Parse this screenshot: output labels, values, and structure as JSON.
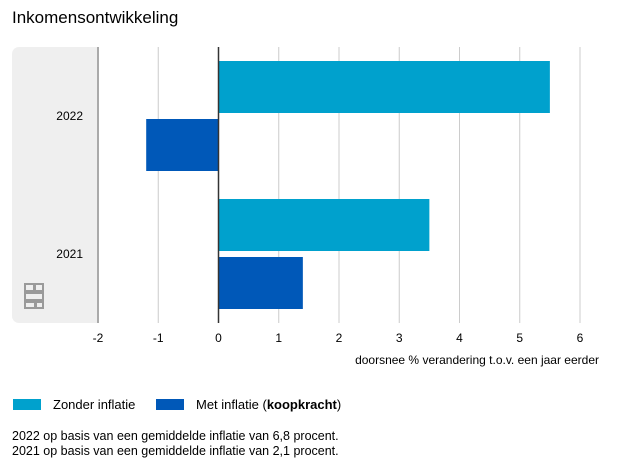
{
  "title": "Inkomensontwikkeling",
  "colors": {
    "zonder_inflatie": "#00a1cd",
    "met_inflatie": "#0058b8",
    "panel_bg": "#efefef",
    "grid": "#cccccc",
    "zero_line": "#333333"
  },
  "legend": {
    "item1": "Zonder inflatie",
    "item2_prefix": "Met inflatie (",
    "item2_bold": "koopkracht",
    "item2_suffix": ")"
  },
  "notes": [
    "2022 op basis van een gemiddelde inflatie van 6,8 procent.",
    "2021 op basis van een gemiddelde inflatie van 2,1 procent."
  ],
  "logo_icon": "cbs-logo-icon",
  "chart_data": {
    "type": "bar",
    "orientation": "horizontal",
    "title": "Inkomensontwikkeling",
    "categories": [
      "2022",
      "2021"
    ],
    "series": [
      {
        "name": "Zonder inflatie",
        "color": "#00a1cd",
        "values": [
          5.5,
          3.5
        ]
      },
      {
        "name": "Met inflatie (koopkracht)",
        "color": "#0058b8",
        "values": [
          -1.2,
          1.4
        ]
      }
    ],
    "xlabel": "doorsnee % verandering t.o.v. een jaar eerder",
    "xlim": [
      -2,
      6
    ],
    "xticks": [
      "-2",
      "-1",
      "0",
      "1",
      "2",
      "3",
      "4",
      "5",
      "6"
    ],
    "grid": true,
    "legend_position": "bottom"
  }
}
